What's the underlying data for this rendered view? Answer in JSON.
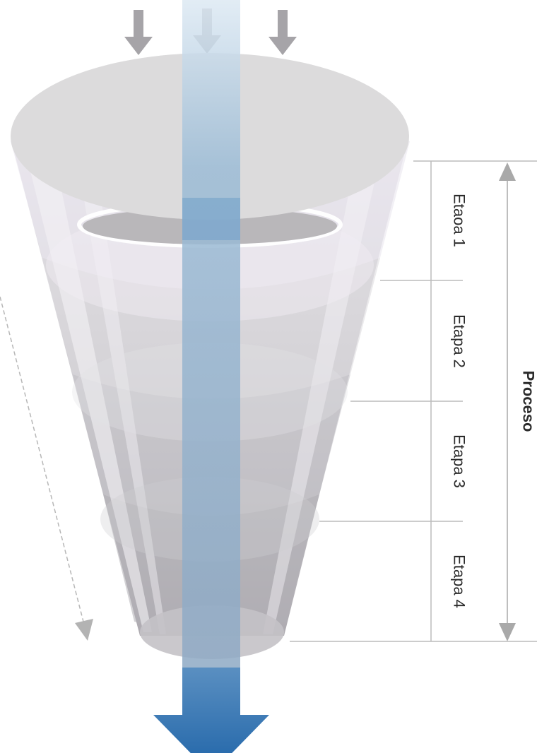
{
  "stages": [
    {
      "label": "Etaoa 1"
    },
    {
      "label": "Etapa 2"
    },
    {
      "label": "Etapa 3"
    },
    {
      "label": "Etapa 4"
    }
  ],
  "process": {
    "label": "Proceso"
  },
  "colors": {
    "funnel_light": "#e4e1e8",
    "funnel_mid": "#c9c8cc",
    "funnel_dark": "#a9a6ad",
    "rim_top": "#dddcdd",
    "stream": "#6f9fc9",
    "output_arrow": "#2e72b3",
    "input_arrow": "#a6a4a8",
    "guide_line": "#bcbcbc",
    "text": "#2b2b2b"
  }
}
